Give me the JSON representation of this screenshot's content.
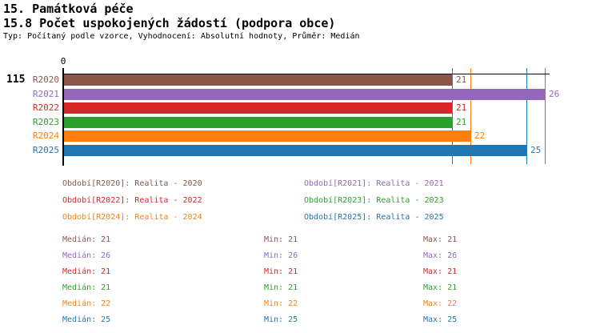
{
  "header": {
    "title_line1": "15. Památková péče",
    "title_line2": "15.8 Počet uspokojených žádostí (podpora obce)",
    "subtitle": "Typ: Počítaný podle vzorce, Vyhodnocení: Absolutní hodnoty, Průměr: Medián"
  },
  "indicator_number": "115",
  "chart_data": {
    "type": "bar",
    "orientation": "horizontal",
    "title": "15.8 Počet uspokojených žádostí (podpora obce)",
    "categories": [
      "R2020",
      "R2021",
      "R2022",
      "R2023",
      "R2024",
      "R2025"
    ],
    "values": [
      21,
      26,
      21,
      21,
      22,
      25
    ],
    "value_labels": [
      "21",
      "26",
      "21",
      "21",
      "22",
      "25"
    ],
    "colors": [
      "#8c564b",
      "#9467bd",
      "#d62728",
      "#2ca02c",
      "#ff7f0e",
      "#1f77b4"
    ],
    "median_markers": [
      21,
      26,
      21,
      21,
      22,
      25
    ],
    "axis_zero_label": "0",
    "xlim": [
      0,
      26.3
    ],
    "grid": false,
    "legend_position": "bottom"
  },
  "legend": {
    "items": [
      {
        "label": "Období[R2020]: Realita - 2020",
        "color": "#8c564b"
      },
      {
        "label": "Období[R2021]: Realita - 2021",
        "color": "#9467bd"
      },
      {
        "label": "Období[R2022]: Realita - 2022",
        "color": "#d62728"
      },
      {
        "label": "Období[R2023]: Realita - 2023",
        "color": "#2ca02c"
      },
      {
        "label": "Období[R2024]: Realita - 2024",
        "color": "#ff7f0e"
      },
      {
        "label": "Období[R2025]: Realita - 2025",
        "color": "#1f77b4"
      }
    ]
  },
  "stats": {
    "rows": [
      {
        "median": "Medián: 21",
        "min": "Min: 21",
        "max": "Max: 21",
        "color": "#8c564b"
      },
      {
        "median": "Medián: 26",
        "min": "Min: 26",
        "max": "Max: 26",
        "color": "#9467bd"
      },
      {
        "median": "Medián: 21",
        "min": "Min: 21",
        "max": "Max: 21",
        "color": "#d62728"
      },
      {
        "median": "Medián: 21",
        "min": "Min: 21",
        "max": "Max: 21",
        "color": "#2ca02c"
      },
      {
        "median": "Medián: 22",
        "min": "Min: 22",
        "max": "Max: 22",
        "color": "#ff7f0e"
      },
      {
        "median": "Medián: 25",
        "min": "Min: 25",
        "max": "Max: 25",
        "color": "#1f77b4"
      }
    ]
  },
  "colors": {
    "indicator_number": "#dd0000",
    "axis": "#000000",
    "text": "#000000"
  }
}
